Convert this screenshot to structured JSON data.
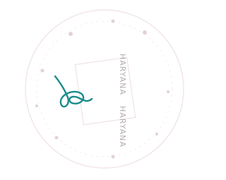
{
  "stamp": {
    "lines": [
      "HARYANA",
      "HARYANA"
    ]
  }
}
